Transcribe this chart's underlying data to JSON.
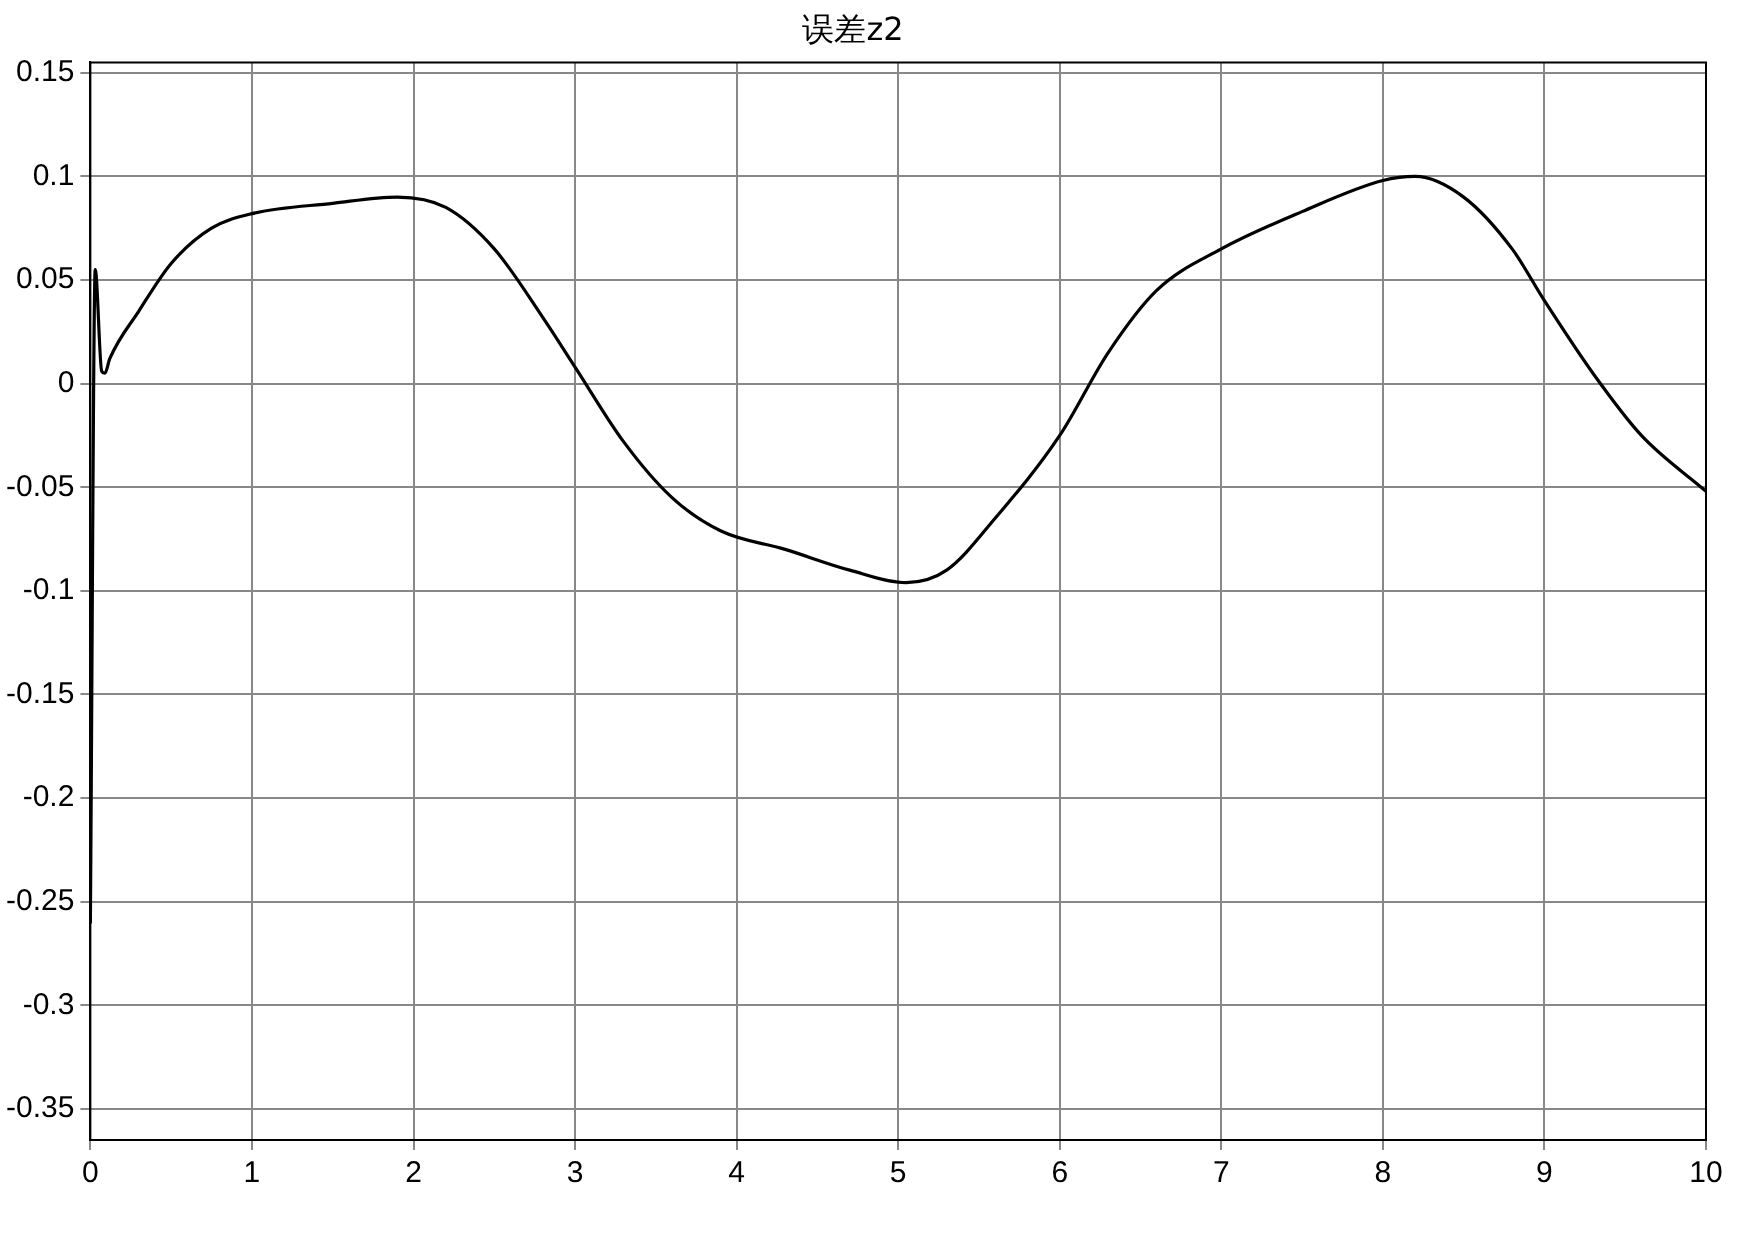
{
  "chart_data": {
    "type": "line",
    "title": "误差z2",
    "x": [
      0,
      0.03,
      0.07,
      0.09,
      0.12,
      0.3,
      0.5,
      0.75,
      1,
      1.5,
      1.9,
      2.2,
      2.5,
      2.8,
      3,
      3.3,
      3.6,
      3.9,
      4.3,
      4.7,
      5.05,
      5.3,
      5.6,
      6,
      6.3,
      6.6,
      7,
      7.5,
      8,
      8.2,
      8.5,
      8.8,
      9,
      9.3,
      9.6,
      10
    ],
    "series": [
      {
        "color": "#000000",
        "values": [
          -0.26,
          0.055,
          0.006,
          0.005,
          0.012,
          0.035,
          0.058,
          0.075,
          0.082,
          0.087,
          0.09,
          0.085,
          0.065,
          0.032,
          0.008,
          -0.028,
          -0.055,
          -0.071,
          -0.08,
          -0.09,
          -0.096,
          -0.09,
          -0.065,
          -0.025,
          0.015,
          0.045,
          0.065,
          0.083,
          0.098,
          0.1,
          0.09,
          0.065,
          0.04,
          0.005,
          -0.025,
          -0.052
        ]
      }
    ],
    "xlim": [
      0,
      10
    ],
    "xticks": [
      0,
      1,
      2,
      3,
      4,
      5,
      6,
      7,
      8,
      9,
      10
    ],
    "ylim": [
      -0.365,
      0.155
    ],
    "yticks": [
      -0.35,
      -0.3,
      -0.25,
      -0.2,
      -0.15,
      -0.1,
      -0.05,
      0,
      0.05,
      0.1,
      0.15
    ],
    "grid": true,
    "legend": false,
    "marker": "none",
    "line_style": "solid"
  }
}
